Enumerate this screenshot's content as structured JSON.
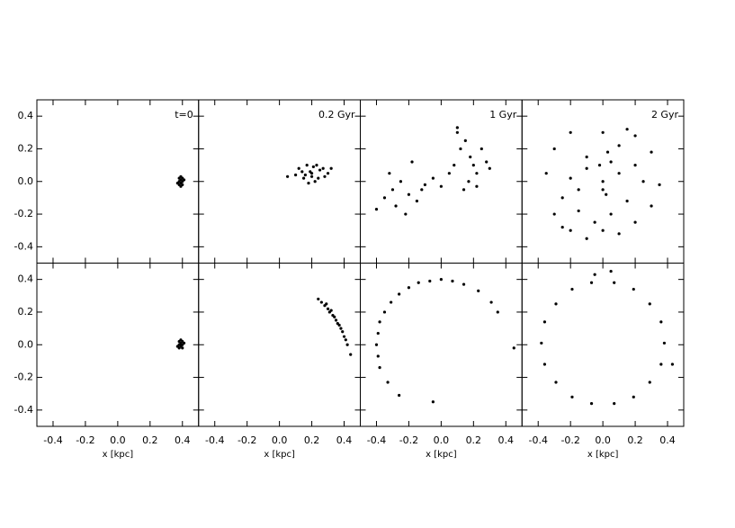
{
  "chart_data": [
    {
      "type": "scatter",
      "annotation": "t=0",
      "color": "#000000",
      "x": [
        0.38,
        0.39,
        0.4,
        0.39,
        0.38,
        0.4,
        0.39,
        0.37,
        0.41,
        0.39,
        0.38,
        0.4
      ],
      "y": [
        0.0,
        0.01,
        0.0,
        -0.01,
        0.02,
        -0.02,
        0.03,
        -0.01,
        0.01,
        -0.03,
        -0.02,
        0.02
      ],
      "xlim": [
        -0.5,
        0.5
      ],
      "ylim": [
        -0.5,
        0.5
      ],
      "xticks": [
        -0.4,
        -0.2,
        {
          "value": 0,
          "label": "0.0"
        },
        0.2,
        0.4
      ],
      "yticks": [
        -0.4,
        -0.2,
        {
          "value": 0,
          "label": "0.0"
        },
        0.2,
        0.4
      ]
    },
    {
      "type": "scatter",
      "annotation": "0.2 Gyr",
      "color": "#000000",
      "x": [
        0.1,
        0.12,
        0.15,
        0.17,
        0.2,
        0.22,
        0.25,
        0.28,
        0.3,
        0.14,
        0.18,
        0.21,
        0.24,
        0.27,
        0.16,
        0.19,
        0.23,
        0.2,
        0.05,
        0.32
      ],
      "y": [
        0.04,
        0.08,
        0.02,
        0.1,
        0.05,
        0.0,
        0.07,
        0.03,
        0.05,
        0.06,
        -0.01,
        0.09,
        0.02,
        0.08,
        0.04,
        0.06,
        0.1,
        0.03,
        0.03,
        0.08
      ],
      "xlim": [
        -0.5,
        0.5
      ],
      "ylim": [
        -0.5,
        0.5
      ],
      "xticks": [
        -0.4,
        -0.2,
        {
          "value": 0,
          "label": "0.0"
        },
        0.2,
        0.4
      ],
      "yticks": [
        -0.4,
        -0.2,
        {
          "value": 0,
          "label": "0.0"
        },
        0.2,
        0.4
      ]
    },
    {
      "type": "scatter",
      "annotation": "1 Gyr",
      "color": "#000000",
      "x": [
        -0.4,
        -0.35,
        -0.3,
        -0.28,
        -0.25,
        -0.22,
        -0.2,
        -0.15,
        -0.12,
        -0.1,
        -0.05,
        0,
        0.05,
        0.08,
        0.1,
        0.12,
        0.15,
        0.18,
        0.2,
        0.22,
        0.25,
        0.28,
        0.3,
        0.14,
        0.17,
        0.22,
        -0.32,
        -0.18,
        0.1
      ],
      "y": [
        -0.17,
        -0.1,
        -0.05,
        -0.15,
        0.0,
        -0.2,
        -0.08,
        -0.12,
        -0.05,
        -0.02,
        0.02,
        -0.03,
        0.05,
        0.1,
        0.3,
        0.2,
        0.25,
        0.15,
        0.1,
        0.05,
        0.2,
        0.12,
        0.08,
        -0.05,
        0.0,
        -0.03,
        0.05,
        0.12,
        0.33
      ],
      "xlim": [
        -0.5,
        0.5
      ],
      "ylim": [
        -0.5,
        0.5
      ],
      "xticks": [
        -0.4,
        -0.2,
        {
          "value": 0,
          "label": "0.0"
        },
        0.2,
        0.4
      ],
      "yticks": [
        -0.4,
        -0.2,
        {
          "value": 0,
          "label": "0.0"
        },
        0.2,
        0.4
      ]
    },
    {
      "type": "scatter",
      "annotation": "2 Gyr",
      "color": "#000000",
      "x": [
        -0.3,
        -0.2,
        -0.1,
        0.0,
        0.1,
        0.2,
        0.3,
        -0.25,
        -0.15,
        -0.05,
        0.05,
        0.15,
        0.25,
        -0.35,
        -0.2,
        0.0,
        0.2,
        0.35,
        -0.3,
        -0.1,
        0.1,
        0.3,
        -0.2,
        0.0,
        0.2,
        -0.1,
        0.1,
        -0.15,
        0.05,
        0.15,
        0.0,
        0.02,
        -0.02,
        0.03,
        -0.25
      ],
      "y": [
        -0.2,
        -0.3,
        -0.35,
        -0.3,
        -0.32,
        -0.25,
        -0.15,
        -0.1,
        -0.18,
        -0.25,
        -0.2,
        -0.12,
        0.0,
        0.05,
        0.02,
        -0.05,
        0.1,
        -0.02,
        0.2,
        0.15,
        0.22,
        0.18,
        0.3,
        0.3,
        0.28,
        0.08,
        0.05,
        -0.05,
        0.12,
        0.32,
        0.0,
        -0.08,
        0.1,
        0.18,
        -0.28
      ],
      "xlim": [
        -0.5,
        0.5
      ],
      "ylim": [
        -0.5,
        0.5
      ],
      "xticks": [
        -0.4,
        -0.2,
        {
          "value": 0,
          "label": "0.0"
        },
        0.2,
        0.4
      ],
      "yticks": [
        -0.4,
        -0.2,
        {
          "value": 0,
          "label": "0.0"
        },
        0.2,
        0.4
      ]
    },
    {
      "type": "scatter",
      "xlabel": "x [kpc]",
      "color": "#000000",
      "x": [
        0.38,
        0.39,
        0.4,
        0.39,
        0.38,
        0.4,
        0.39,
        0.37,
        0.41,
        0.39,
        0.38,
        0.4
      ],
      "y": [
        0.0,
        0.01,
        0.0,
        -0.01,
        0.02,
        -0.02,
        0.03,
        -0.01,
        0.01,
        0.0,
        -0.02,
        0.02
      ],
      "xlim": [
        -0.5,
        0.5
      ],
      "ylim": [
        -0.5,
        0.5
      ],
      "xticks": [
        -0.4,
        -0.2,
        {
          "value": 0,
          "label": "0.0"
        },
        0.2,
        0.4
      ],
      "yticks": [
        -0.4,
        -0.2,
        {
          "value": 0,
          "label": "0.0"
        },
        0.2,
        0.4
      ]
    },
    {
      "type": "scatter",
      "xlabel": "x [kpc]",
      "color": "#000000",
      "x": [
        0.24,
        0.26,
        0.28,
        0.3,
        0.31,
        0.33,
        0.35,
        0.36,
        0.38,
        0.39,
        0.4,
        0.42,
        0.29,
        0.32,
        0.34,
        0.37,
        0.41,
        0.44
      ],
      "y": [
        0.28,
        0.26,
        0.24,
        0.22,
        0.2,
        0.18,
        0.15,
        0.13,
        0.1,
        0.08,
        0.05,
        0.0,
        0.25,
        0.21,
        0.17,
        0.12,
        0.03,
        -0.06
      ],
      "xlim": [
        -0.5,
        0.5
      ],
      "ylim": [
        -0.5,
        0.5
      ],
      "xticks": [
        -0.4,
        -0.2,
        {
          "value": 0,
          "label": "0.0"
        },
        0.2,
        0.4
      ],
      "yticks": [
        -0.4,
        -0.2,
        {
          "value": 0,
          "label": "0.0"
        },
        0.2,
        0.4
      ]
    },
    {
      "type": "scatter",
      "xlabel": "x [kpc]",
      "color": "#000000",
      "x": [
        -0.26,
        -0.33,
        -0.38,
        -0.39,
        -0.4,
        -0.39,
        -0.38,
        -0.35,
        -0.31,
        -0.26,
        -0.2,
        -0.14,
        -0.07,
        0.0,
        0.07,
        0.14,
        0.23,
        0.31,
        0.35,
        -0.05,
        0.45
      ],
      "y": [
        -0.31,
        -0.23,
        -0.14,
        -0.07,
        0.0,
        0.07,
        0.14,
        0.2,
        0.26,
        0.31,
        0.35,
        0.38,
        0.39,
        0.4,
        0.39,
        0.37,
        0.33,
        0.26,
        0.2,
        -0.35,
        -0.02
      ],
      "xlim": [
        -0.5,
        0.5
      ],
      "ylim": [
        -0.5,
        0.5
      ],
      "xticks": [
        -0.4,
        -0.2,
        {
          "value": 0,
          "label": "0.0"
        },
        0.2,
        0.4
      ],
      "yticks": [
        -0.4,
        -0.2,
        {
          "value": 0,
          "label": "0.0"
        },
        0.2,
        0.4
      ]
    },
    {
      "type": "scatter",
      "xlabel": "x [kpc]",
      "color": "#000000",
      "x": [
        0.38,
        0.36,
        0.29,
        0.19,
        0.07,
        -0.07,
        -0.19,
        -0.29,
        -0.36,
        -0.38,
        -0.36,
        -0.29,
        -0.19,
        -0.07,
        0.07,
        0.19,
        0.29,
        0.36,
        0.05,
        -0.05,
        0.43
      ],
      "y": [
        0.01,
        0.14,
        0.25,
        0.34,
        0.38,
        0.38,
        0.34,
        0.25,
        0.14,
        0.01,
        -0.12,
        -0.23,
        -0.32,
        -0.36,
        -0.36,
        -0.32,
        -0.23,
        -0.12,
        0.45,
        0.43,
        -0.12
      ],
      "xlim": [
        -0.5,
        0.5
      ],
      "ylim": [
        -0.5,
        0.5
      ],
      "xticks": [
        -0.4,
        -0.2,
        {
          "value": 0,
          "label": "0.0"
        },
        0.2,
        0.4
      ],
      "yticks": [
        -0.4,
        -0.2,
        {
          "value": 0,
          "label": "0.0"
        },
        0.2,
        0.4
      ]
    }
  ]
}
